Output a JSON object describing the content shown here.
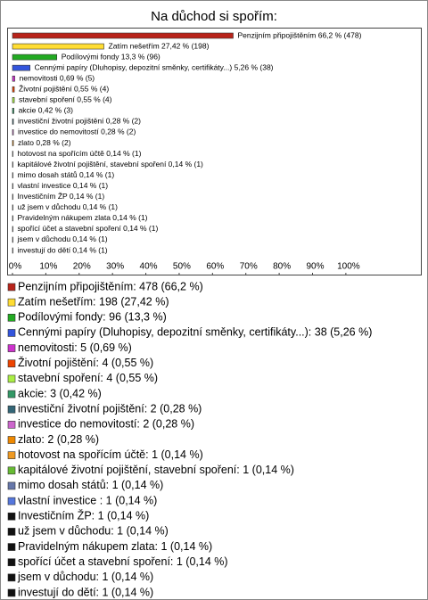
{
  "chart_data": {
    "type": "bar",
    "orientation": "horizontal",
    "title": "Na důchod si spořím:",
    "values": [
      66.2,
      27.42,
      13.3,
      5.26,
      0.69,
      0.55,
      0.55,
      0.42,
      0.28,
      0.28,
      0.28,
      0.14,
      0.14,
      0.14,
      0.14,
      0.14,
      0.14,
      0.14,
      0.14,
      0.14,
      0.14
    ],
    "value_labels": [
      "Penzijním připojištěním 66,2 % (478)",
      "Zatím nešetřím 27,42 % (198)",
      "Podílovými fondy 13,3 % (96)",
      "Cennými papíry (Dluhopisy, depozitní směnky, certifikáty...) 5,26 % (38)",
      "nemovitosti 0,69 % (5)",
      "Životní pojištění 0,55 % (4)",
      "stavební spoření 0,55 % (4)",
      "akcie 0,42 % (3)",
      "investiční životní pojištění 0,28 % (2)",
      "investice do nemovitostí 0,28 % (2)",
      "zlato 0,28 % (2)",
      "hotovost na spořícím účtě 0,14 % (1)",
      "kapitálové životní pojištění, stavební spoření 0,14 % (1)",
      "mimo dosah států 0,14 % (1)",
      "vlastní investice 0,14 % (1)",
      "Investičním ŽP 0,14 % (1)",
      "už jsem v důchodu 0,14 % (1)",
      "Pravidelným nákupem zlata 0,14 % (1)",
      "spořící účet a stavební spoření 0,14 % (1)",
      "jsem v důchodu 0,14 % (1)",
      "investují do dětí 0,14 % (1)"
    ],
    "legend_labels": [
      "Penzijním připojištěním: 478 (66,2 %)",
      "Zatím nešetřím: 198 (27,42 %)",
      "Podílovými fondy: 96 (13,3 %)",
      "Cennými papíry (Dluhopisy, depozitní směnky, certifikáty...): 38 (5,26 %)",
      "nemovitosti: 5 (0,69 %)",
      "Životní pojištění: 4 (0,55 %)",
      "stavební spoření: 4 (0,55 %)",
      "akcie: 3 (0,42 %)",
      "investiční životní pojištění: 2 (0,28 %)",
      "investice do nemovitostí: 2 (0,28 %)",
      "zlato: 2 (0,28 %)",
      "hotovost na spořícím účtě: 1 (0,14 %)",
      "kapitálové životní pojištění, stavební spoření: 1 (0,14 %)",
      "mimo dosah států: 1 (0,14 %)",
      "vlastní investice : 1 (0,14 %)",
      "Investičním ŽP: 1 (0,14 %)",
      "už jsem v důchodu: 1 (0,14 %)",
      "Pravidelným nákupem zlata: 1 (0,14 %)",
      "spořící účet a stavební spoření: 1 (0,14 %)",
      "jsem v důchodu: 1 (0,14 %)",
      "investují do dětí: 1 (0,14 %)"
    ],
    "colors": [
      "#b8231a",
      "#ffdd33",
      "#22aa22",
      "#3355dd",
      "#cc33cc",
      "#ee4400",
      "#aaee44",
      "#339966",
      "#336677",
      "#cc66cc",
      "#ee8800",
      "#ee9922",
      "#66bb33",
      "#6677aa",
      "#5577dd",
      "#111111",
      "#111111",
      "#111111",
      "#111111",
      "#111111",
      "#111111"
    ],
    "xlim": [
      0,
      122.5
    ],
    "xticks": [
      {
        "value": 0,
        "label": "0%"
      },
      {
        "value": 10,
        "label": "10%"
      },
      {
        "value": 20,
        "label": "20%"
      },
      {
        "value": 30,
        "label": "30%"
      },
      {
        "value": 40,
        "label": "40%"
      },
      {
        "value": 50,
        "label": "50%"
      },
      {
        "value": 60,
        "label": "60%"
      },
      {
        "value": 70,
        "label": "70%"
      },
      {
        "value": 80,
        "label": "80%"
      },
      {
        "value": 90,
        "label": "90%"
      },
      {
        "value": 100,
        "label": "100%"
      }
    ]
  }
}
